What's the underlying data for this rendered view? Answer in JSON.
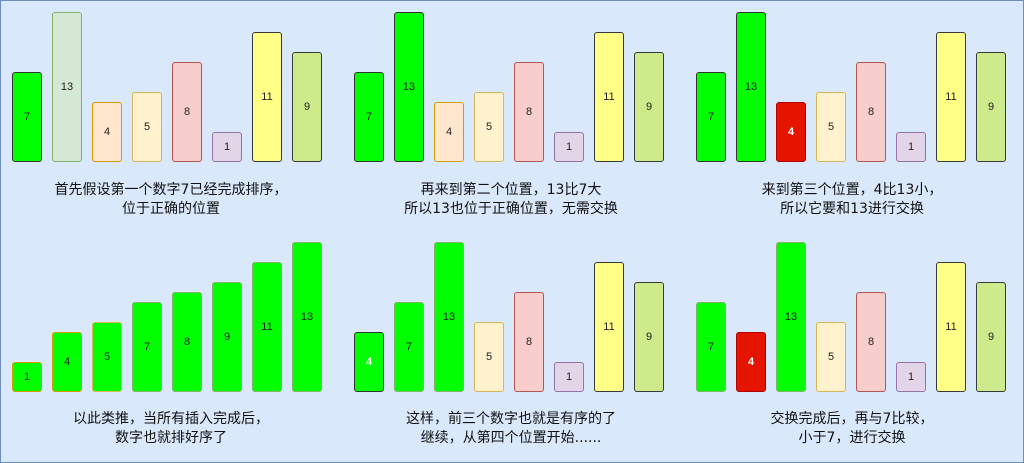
{
  "panels": [
    {
      "bars": [
        {
          "value": "7",
          "height": 7,
          "fill": "#00ff00",
          "stroke": "#333333"
        },
        {
          "value": "13",
          "height": 13,
          "fill": "#d5e8d4",
          "stroke": "#82b366"
        },
        {
          "value": "4",
          "height": 4,
          "fill": "#ffe6cc",
          "stroke": "#d79b00"
        },
        {
          "value": "5",
          "height": 5,
          "fill": "#fff2cc",
          "stroke": "#d6b656"
        },
        {
          "value": "8",
          "height": 8,
          "fill": "#f8cecc",
          "stroke": "#b85450"
        },
        {
          "value": "1",
          "height": 1,
          "fill": "#e1d5e7",
          "stroke": "#9673a6"
        },
        {
          "value": "11",
          "height": 11,
          "fill": "#ffff88",
          "stroke": "#36393d"
        },
        {
          "value": "9",
          "height": 9,
          "fill": "#cdeb8b",
          "stroke": "#36393d"
        }
      ],
      "caption": [
        "首先假设第一个数字7已经完成排序，",
        "位于正确的位置"
      ]
    },
    {
      "bars": [
        {
          "value": "7",
          "height": 7,
          "fill": "#00ff00",
          "stroke": "#333333"
        },
        {
          "value": "13",
          "height": 13,
          "fill": "#00ff00",
          "stroke": "#333333"
        },
        {
          "value": "4",
          "height": 4,
          "fill": "#ffe6cc",
          "stroke": "#d79b00"
        },
        {
          "value": "5",
          "height": 5,
          "fill": "#fff2cc",
          "stroke": "#d6b656"
        },
        {
          "value": "8",
          "height": 8,
          "fill": "#f8cecc",
          "stroke": "#b85450"
        },
        {
          "value": "1",
          "height": 1,
          "fill": "#e1d5e7",
          "stroke": "#9673a6"
        },
        {
          "value": "11",
          "height": 11,
          "fill": "#ffff88",
          "stroke": "#36393d"
        },
        {
          "value": "9",
          "height": 9,
          "fill": "#cdeb8b",
          "stroke": "#36393d"
        }
      ],
      "caption": [
        "再来到第二个位置，13比7大",
        "所以13也位于正确位置，无需交换"
      ]
    },
    {
      "bars": [
        {
          "value": "7",
          "height": 7,
          "fill": "#00ff00",
          "stroke": "#333333"
        },
        {
          "value": "13",
          "height": 13,
          "fill": "#00ff00",
          "stroke": "#333333"
        },
        {
          "value": "4",
          "height": 4,
          "fill": "#e51400",
          "stroke": "#b20000",
          "white_text": true
        },
        {
          "value": "5",
          "height": 5,
          "fill": "#fff2cc",
          "stroke": "#d6b656"
        },
        {
          "value": "8",
          "height": 8,
          "fill": "#f8cecc",
          "stroke": "#b85450"
        },
        {
          "value": "1",
          "height": 1,
          "fill": "#e1d5e7",
          "stroke": "#9673a6"
        },
        {
          "value": "11",
          "height": 11,
          "fill": "#ffff88",
          "stroke": "#36393d"
        },
        {
          "value": "9",
          "height": 9,
          "fill": "#cdeb8b",
          "stroke": "#36393d"
        }
      ],
      "caption": [
        "来到第三个位置，4比13小，",
        "所以它要和13进行交换"
      ]
    },
    {
      "bars": [
        {
          "value": "1",
          "height": 1,
          "fill": "#00ff00",
          "stroke": "#d79b00"
        },
        {
          "value": "4",
          "height": 4,
          "fill": "#00ff00",
          "stroke": "#d79b00"
        },
        {
          "value": "5",
          "height": 5,
          "fill": "#00ff00",
          "stroke": "#d6b656"
        },
        {
          "value": "7",
          "height": 7,
          "fill": "#00ff00",
          "stroke": "#82b366"
        },
        {
          "value": "8",
          "height": 8,
          "fill": "#00ff00",
          "stroke": "#82b366"
        },
        {
          "value": "9",
          "height": 9,
          "fill": "#00ff00",
          "stroke": "#82b366"
        },
        {
          "value": "11",
          "height": 11,
          "fill": "#00ff00",
          "stroke": "#82b366"
        },
        {
          "value": "13",
          "height": 13,
          "fill": "#00ff00",
          "stroke": "#82b366"
        }
      ],
      "caption": [
        "以此类推，当所有插入完成后，",
        "数字也就排好序了"
      ]
    },
    {
      "bars": [
        {
          "value": "4",
          "height": 4,
          "fill": "#00ff00",
          "stroke": "#333333",
          "white_text": true
        },
        {
          "value": "7",
          "height": 7,
          "fill": "#00ff00",
          "stroke": "#82b366"
        },
        {
          "value": "13",
          "height": 13,
          "fill": "#00ff00",
          "stroke": "#82b366"
        },
        {
          "value": "5",
          "height": 5,
          "fill": "#fff2cc",
          "stroke": "#d6b656"
        },
        {
          "value": "8",
          "height": 8,
          "fill": "#f8cecc",
          "stroke": "#b85450"
        },
        {
          "value": "1",
          "height": 1,
          "fill": "#e1d5e7",
          "stroke": "#9673a6"
        },
        {
          "value": "11",
          "height": 11,
          "fill": "#ffff88",
          "stroke": "#36393d"
        },
        {
          "value": "9",
          "height": 9,
          "fill": "#cdeb8b",
          "stroke": "#36393d"
        }
      ],
      "caption": [
        "这样，前三个数字也就是有序的了",
        "继续，从第四个位置开始......"
      ]
    },
    {
      "bars": [
        {
          "value": "7",
          "height": 7,
          "fill": "#00ff00",
          "stroke": "#82b366"
        },
        {
          "value": "4",
          "height": 4,
          "fill": "#e51400",
          "stroke": "#b20000",
          "white_text": true
        },
        {
          "value": "13",
          "height": 13,
          "fill": "#00ff00",
          "stroke": "#82b366"
        },
        {
          "value": "5",
          "height": 5,
          "fill": "#fff2cc",
          "stroke": "#d6b656"
        },
        {
          "value": "8",
          "height": 8,
          "fill": "#f8cecc",
          "stroke": "#b85450"
        },
        {
          "value": "1",
          "height": 1,
          "fill": "#e1d5e7",
          "stroke": "#9673a6"
        },
        {
          "value": "11",
          "height": 11,
          "fill": "#ffff88",
          "stroke": "#36393d"
        },
        {
          "value": "9",
          "height": 9,
          "fill": "#cdeb8b",
          "stroke": "#36393d"
        }
      ],
      "caption": [
        "交换完成后，再与7比较，",
        "小于7，进行交换"
      ]
    }
  ]
}
